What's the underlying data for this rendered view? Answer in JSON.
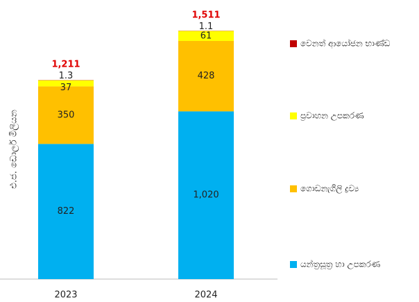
{
  "chart_data": {
    "type": "stacked_bar",
    "y_label": "එ.ජ. ඩොලර් මිලියන",
    "categories": [
      "2023",
      "2024"
    ],
    "series": [
      {
        "name": "යන්ත්‍රසූත්‍ර හා උපකරණ",
        "color": "#00b0f0",
        "values": [
          822,
          1020
        ],
        "value_labels": [
          "822",
          "1,020"
        ]
      },
      {
        "name": "ගොඩනැගිලි ද්‍රව්‍ය",
        "color": "#ffc000",
        "values": [
          350,
          428
        ]
      },
      {
        "name": "ප්‍රවාහන උපකරණ",
        "color": "#ffff00",
        "values": [
          37,
          61
        ]
      },
      {
        "name": "වෙනත් ආයෝජන භාණ්ඩ",
        "color": "#c00000",
        "values": [
          1.3,
          1.1
        ]
      }
    ],
    "totals": {
      "values": [
        1211,
        1511
      ],
      "value_labels": [
        "1,211",
        "1,511"
      ]
    },
    "ylim": [
      0,
      1600
    ]
  }
}
